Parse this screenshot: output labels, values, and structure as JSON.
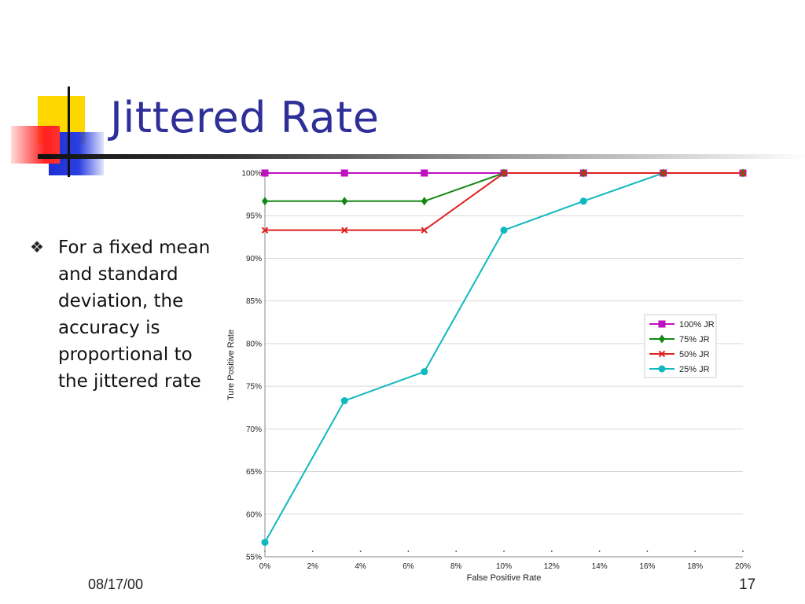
{
  "slide": {
    "title": "Jittered Rate",
    "bullet": "For a fixed mean and standard deviation, the accuracy is proportional to the jittered rate",
    "date": "08/17/00",
    "page_number": "17"
  },
  "chart_data": {
    "type": "line",
    "xlabel": "False Positive Rate",
    "ylabel": "Ture Positive Rate",
    "x_ticks": [
      "0%",
      "2%",
      "4%",
      "6%",
      "8%",
      "10%",
      "12%",
      "14%",
      "16%",
      "18%",
      "20%"
    ],
    "y_ticks": [
      "55%",
      "60%",
      "65%",
      "70%",
      "75%",
      "80%",
      "85%",
      "90%",
      "95%",
      "100%"
    ],
    "xlim": [
      0,
      20
    ],
    "ylim": [
      55,
      100
    ],
    "grid": "horizontal",
    "legend": "right",
    "series": [
      {
        "name": "100% JR",
        "color": "#c010c0",
        "marker": "square",
        "x": [
          0,
          3.33,
          6.67,
          10,
          13.33,
          16.67,
          20
        ],
        "y": [
          100,
          100,
          100,
          100,
          100,
          100,
          100
        ]
      },
      {
        "name": "75% JR",
        "color": "#118811",
        "marker": "diamond",
        "x": [
          0,
          3.33,
          6.67,
          10,
          13.33,
          16.67,
          20
        ],
        "y": [
          96.7,
          96.7,
          96.7,
          100,
          100,
          100,
          100
        ]
      },
      {
        "name": "50% JR",
        "color": "#e02020",
        "marker": "x",
        "x": [
          0,
          3.33,
          6.67,
          10,
          13.33,
          16.67,
          20
        ],
        "y": [
          93.3,
          93.3,
          93.3,
          100,
          100,
          100,
          100
        ]
      },
      {
        "name": "25% JR",
        "color": "#10b8c0",
        "marker": "circle",
        "x": [
          0,
          3.33,
          6.67,
          10,
          13.33,
          16.67,
          20
        ],
        "y": [
          56.7,
          73.3,
          76.7,
          93.3,
          96.7,
          100,
          100
        ]
      }
    ]
  }
}
